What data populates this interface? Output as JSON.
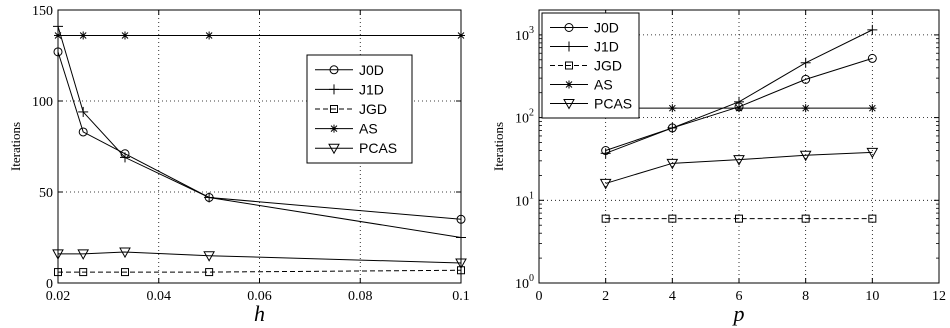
{
  "chart_data": [
    {
      "type": "line",
      "xlabel": "h",
      "ylabel": "Iterations",
      "xlim": [
        0.02,
        0.1
      ],
      "ylim": [
        0,
        150
      ],
      "yscale": "linear",
      "xticks": [
        "0.02",
        "0.04",
        "0.06",
        "0.08",
        "0.1"
      ],
      "yticks": [
        "0",
        "50",
        "100",
        "150"
      ],
      "grid": true,
      "legend": "right",
      "x": [
        0.02,
        0.025,
        0.0333,
        0.05,
        0.1
      ],
      "series": [
        {
          "name": "J0D",
          "marker": "circle",
          "dash": "solid",
          "values": [
            127,
            83,
            71,
            47,
            35
          ]
        },
        {
          "name": "J1D",
          "marker": "plus",
          "dash": "solid",
          "values": [
            141,
            94,
            69,
            47,
            25
          ]
        },
        {
          "name": "JGD",
          "marker": "square",
          "dash": "dashed",
          "values": [
            6,
            6,
            6,
            6,
            7
          ]
        },
        {
          "name": "AS",
          "marker": "star",
          "dash": "solid",
          "values": [
            136,
            136,
            136,
            136,
            136
          ]
        },
        {
          "name": "PCAS",
          "marker": "triangle",
          "dash": "solid",
          "values": [
            16,
            16,
            17,
            15,
            11
          ]
        }
      ]
    },
    {
      "type": "line",
      "xlabel": "p",
      "ylabel": "Iterations",
      "xlim": [
        0,
        12
      ],
      "ylim": [
        1,
        2000
      ],
      "yscale": "log",
      "xticks": [
        "0",
        "2",
        "4",
        "6",
        "8",
        "10",
        "12"
      ],
      "yticks": [
        {
          "base": "10",
          "exp": "0"
        },
        {
          "base": "10",
          "exp": "1"
        },
        {
          "base": "10",
          "exp": "2"
        },
        {
          "base": "10",
          "exp": "3"
        }
      ],
      "grid": true,
      "legend": "top-left",
      "x": [
        2,
        4,
        6,
        8,
        10
      ],
      "series": [
        {
          "name": "J0D",
          "marker": "circle",
          "dash": "solid",
          "values": [
            40,
            75,
            135,
            290,
            520
          ]
        },
        {
          "name": "J1D",
          "marker": "plus",
          "dash": "solid",
          "values": [
            37,
            75,
            155,
            460,
            1150
          ]
        },
        {
          "name": "JGD",
          "marker": "square",
          "dash": "dashed",
          "values": [
            6,
            6,
            6,
            6,
            6
          ]
        },
        {
          "name": "AS",
          "marker": "star",
          "dash": "solid",
          "values": [
            130,
            130,
            130,
            130,
            130
          ]
        },
        {
          "name": "PCAS",
          "marker": "triangle",
          "dash": "solid",
          "values": [
            16,
            28,
            31,
            35,
            38
          ]
        }
      ]
    }
  ]
}
